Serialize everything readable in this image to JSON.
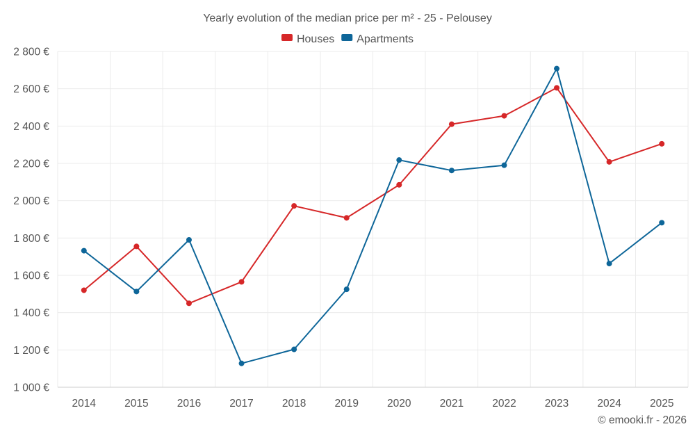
{
  "chart_data": {
    "type": "line",
    "title": "Yearly evolution of the median price per m² - 25 - Pelousey",
    "categories": [
      "2014",
      "2015",
      "2016",
      "2017",
      "2018",
      "2019",
      "2020",
      "2021",
      "2022",
      "2023",
      "2024",
      "2025"
    ],
    "series": [
      {
        "name": "Houses",
        "color": "#d62728",
        "values": [
          1520,
          1755,
          1450,
          1565,
          1972,
          1908,
          2085,
          2410,
          2455,
          2605,
          2208,
          2305
        ]
      },
      {
        "name": "Apartments",
        "color": "#0e6699",
        "values": [
          1732,
          1513,
          1790,
          1128,
          1203,
          1525,
          2218,
          2162,
          2190,
          2708,
          1663,
          1882
        ]
      }
    ],
    "ylim": [
      1000,
      2800
    ],
    "yticks": [
      {
        "value": 1000,
        "label": "1 000 €"
      },
      {
        "value": 1200,
        "label": "1 200 €"
      },
      {
        "value": 1400,
        "label": "1 400 €"
      },
      {
        "value": 1600,
        "label": "1 600 €"
      },
      {
        "value": 1800,
        "label": "1 800 €"
      },
      {
        "value": 2000,
        "label": "2 000 €"
      },
      {
        "value": 2200,
        "label": "2 200 €"
      },
      {
        "value": 2400,
        "label": "2 400 €"
      },
      {
        "value": 2600,
        "label": "2 600 €"
      },
      {
        "value": 2800,
        "label": "2 800 €"
      }
    ],
    "xlabel": "",
    "ylabel": "",
    "grid": true,
    "legend_position": "top-center"
  },
  "credit": "© emooki.fr - 2026"
}
